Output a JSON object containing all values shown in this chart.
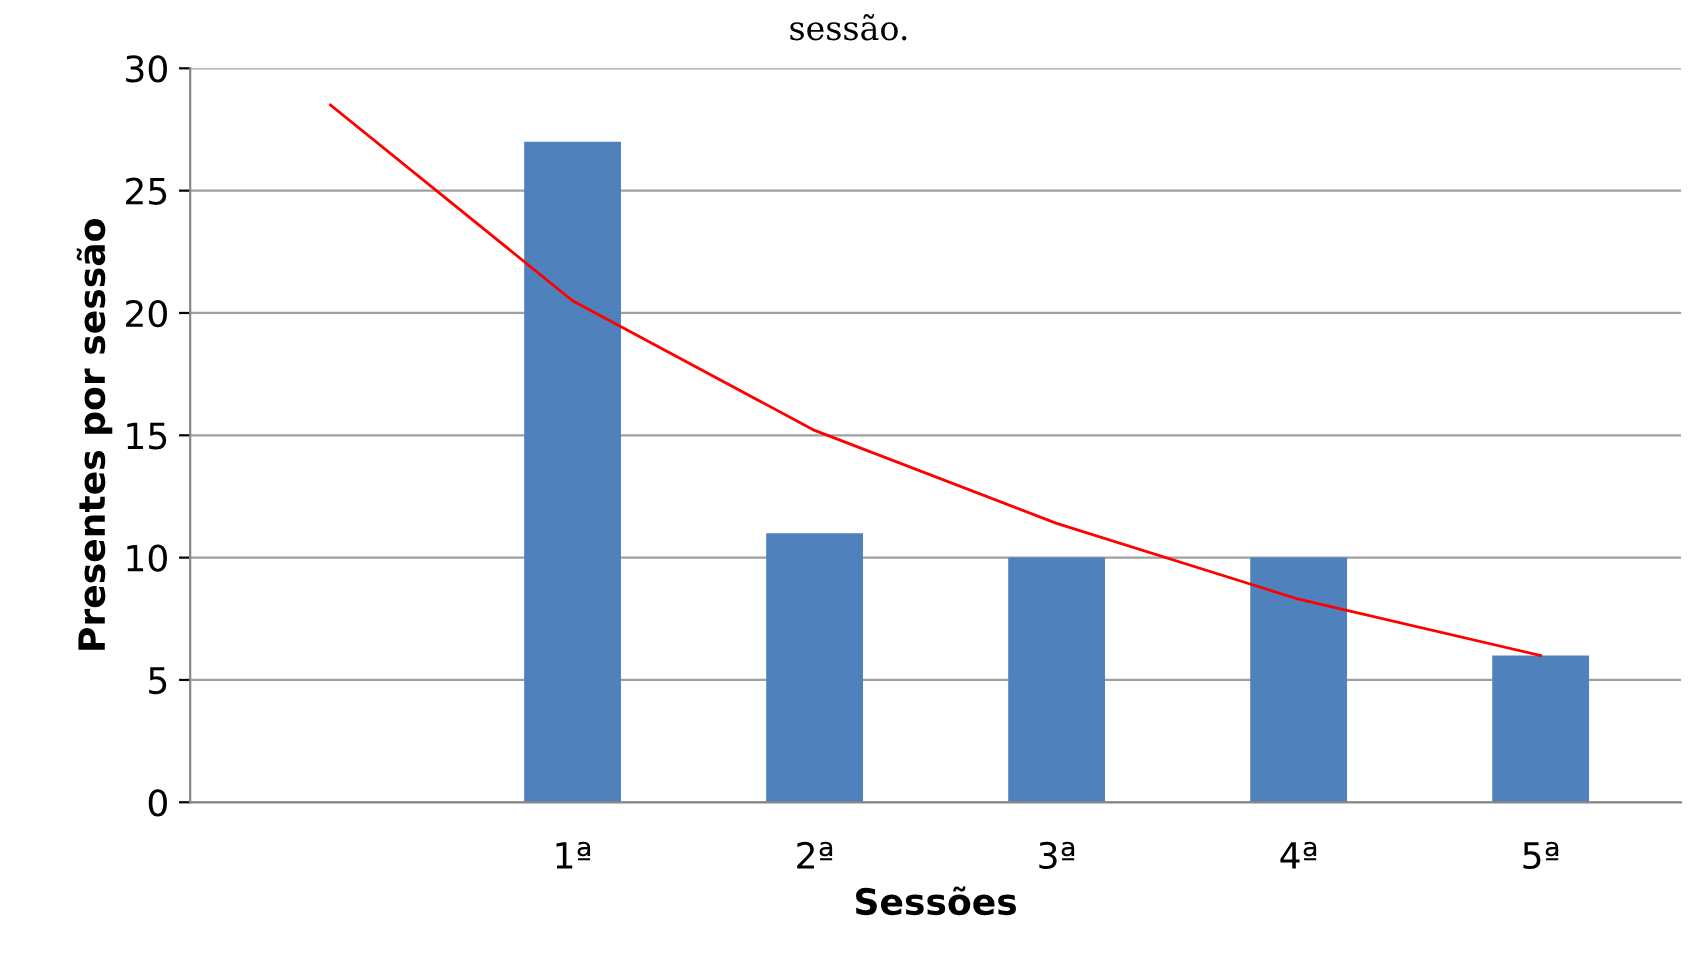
{
  "chart_data": {
    "type": "bar",
    "title": "sessão.",
    "xlabel": "Sessões",
    "ylabel": "Presentes por sessão",
    "categories": [
      null,
      "1ª",
      "2ª",
      "3ª",
      "4ª",
      "5ª"
    ],
    "series": [
      {
        "color": "#4f81bd",
        "values": [
          null,
          27,
          11,
          10,
          10,
          6
        ]
      },
      {
        "type": "line",
        "color": "#ff0000",
        "values": [
          28.5,
          20.5,
          15.2,
          11.4,
          8.3,
          6.0
        ]
      }
    ],
    "ylim": [
      0,
      30
    ],
    "yticks": [
      0,
      5,
      10,
      15,
      20,
      25,
      30
    ],
    "grid": "y",
    "legend": false
  }
}
